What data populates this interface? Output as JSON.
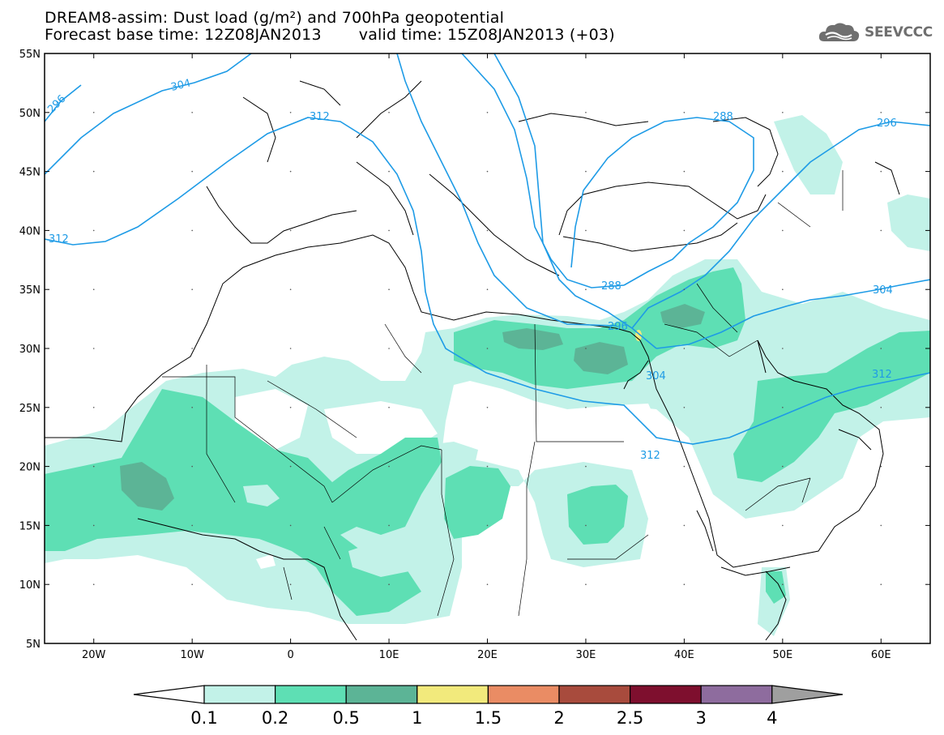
{
  "title": {
    "line1": "DREAM8-assim: Dust load (g/m²) and 700hPa geopotential",
    "line2_base": "Forecast base time: 12Z08JAN2013",
    "line2_valid": "valid time: 15Z08JAN2013 (+03)"
  },
  "logo": {
    "text": "SEEVCCC",
    "icon": "cloud-logo-icon"
  },
  "map": {
    "lon_range": [
      -25,
      65
    ],
    "lat_range": [
      5,
      55
    ],
    "lat_labels": [
      "55N",
      "50N",
      "45N",
      "40N",
      "35N",
      "30N",
      "25N",
      "20N",
      "15N",
      "10N",
      "5N"
    ],
    "lon_labels": [
      "20W",
      "10W",
      "0",
      "10E",
      "20E",
      "30E",
      "40E",
      "50E",
      "60E"
    ]
  },
  "contours": {
    "color": "#1e9be6",
    "labels": [
      "304",
      "296",
      "312",
      "312",
      "288",
      "296",
      "288",
      "296",
      "304",
      "304",
      "312",
      "312"
    ]
  },
  "colorbar": {
    "levels": [
      "0.1",
      "0.2",
      "0.5",
      "1",
      "1.5",
      "2",
      "2.5",
      "3",
      "4"
    ],
    "colors": [
      "#ffffff",
      "#c2f2e8",
      "#5edfb4",
      "#5cb496",
      "#f2ea7c",
      "#ea8c64",
      "#a84b3d",
      "#7e0f2e",
      "#8e6c9e",
      "#9f9f9f"
    ]
  }
}
